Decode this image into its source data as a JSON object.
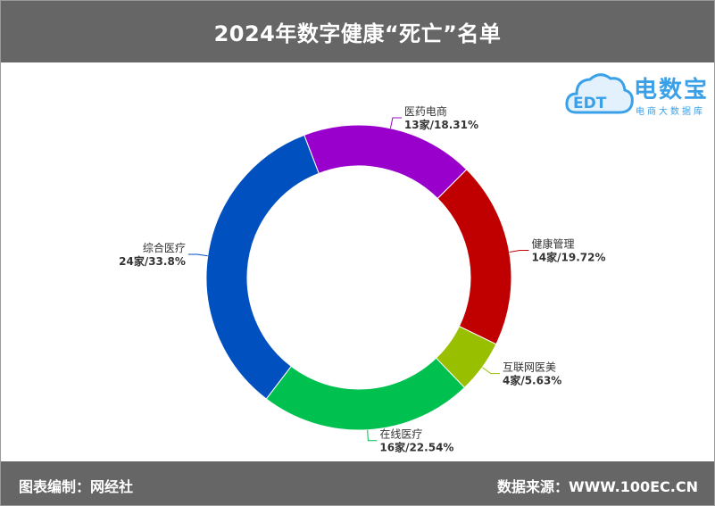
{
  "header": {
    "title": "2024年数字健康“死亡”名单"
  },
  "footer": {
    "left": "图表编制：网经社",
    "right": "数据来源：WWW.100EC.CN"
  },
  "logo": {
    "main": "电数宝",
    "sub": "电商大数据库",
    "mark": "EDT",
    "color": "#3aa0e8"
  },
  "chart_data": {
    "type": "pie",
    "style": "donut",
    "title": "2024年数字健康“死亡”名单",
    "slices": [
      {
        "name": "医药电商",
        "count": 13,
        "percent": 18.31,
        "label": "13家/18.31%",
        "color": "#9900cc"
      },
      {
        "name": "健康管理",
        "count": 14,
        "percent": 19.72,
        "label": "14家/19.72%",
        "color": "#c00000"
      },
      {
        "name": "互联网医美",
        "count": 4,
        "percent": 5.63,
        "label": "4家/5.63%",
        "color": "#99c000"
      },
      {
        "name": "在线医疗",
        "count": 16,
        "percent": 22.54,
        "label": "16家/22.54%",
        "color": "#00c050"
      },
      {
        "name": "综合医疗",
        "count": 24,
        "percent": 33.8,
        "label": "24家/33.8%",
        "color": "#0050c0"
      }
    ]
  }
}
